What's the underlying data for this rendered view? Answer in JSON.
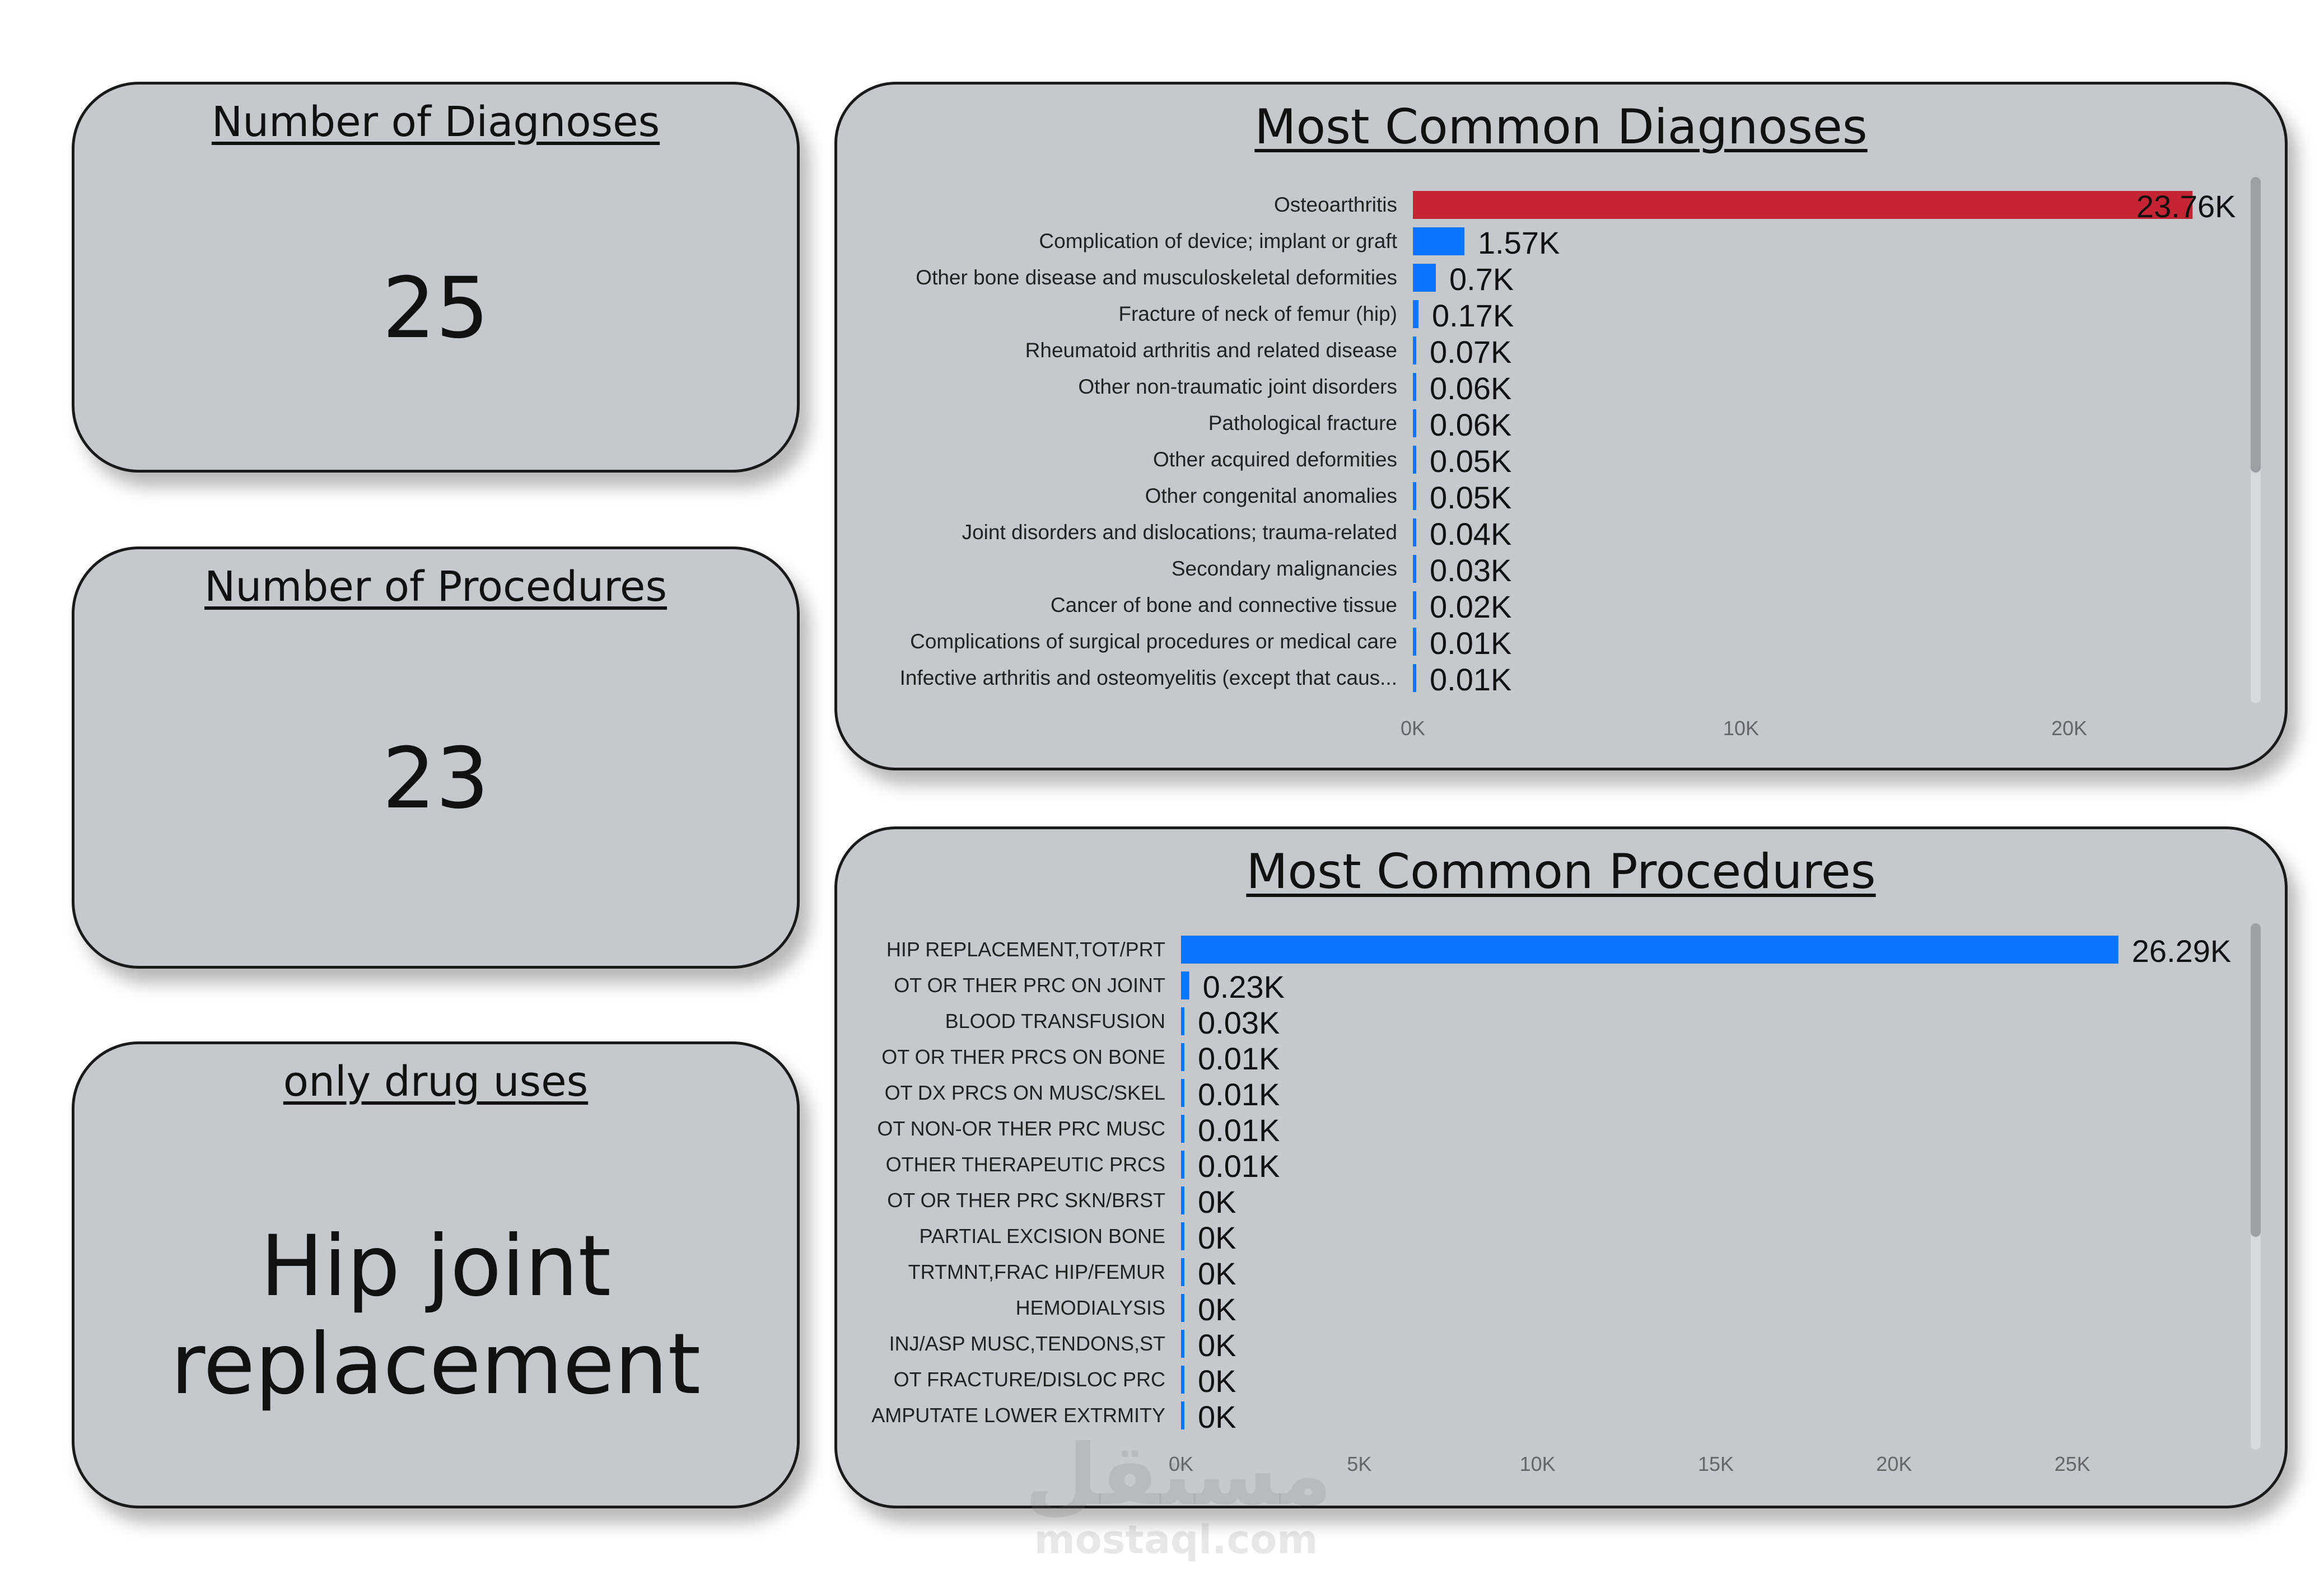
{
  "kpis": {
    "diagnoses": {
      "title": "Number of Diagnoses",
      "value": "25"
    },
    "procedures": {
      "title": "Number of Procedures",
      "value": "23"
    },
    "drug": {
      "title": "only drug uses",
      "value_line1": "Hip joint",
      "value_line2": "replacement"
    }
  },
  "watermark": {
    "arabic": "مستقل",
    "latin": "mostaql.com"
  },
  "colors": {
    "card_bg": "#c5c9ce",
    "bar_primary": "#0a76ff",
    "bar_highlight": "#c52533",
    "scrollbar": "#9aa0a6"
  },
  "chart_data": [
    {
      "type": "bar",
      "orientation": "horizontal",
      "title": "Most Common Diagnoses",
      "categories": [
        "Osteoarthritis",
        "Complication of device; implant or graft",
        "Other bone disease and musculoskeletal deformities",
        "Fracture of neck of femur (hip)",
        "Rheumatoid arthritis and related disease",
        "Other non-traumatic joint disorders",
        "Pathological fracture",
        "Other acquired deformities",
        "Other congenital anomalies",
        "Joint disorders and dislocations; trauma-related",
        "Secondary malignancies",
        "Cancer of bone and connective tissue",
        "Complications of surgical procedures or medical care",
        "Infective arthritis and osteomyelitis (except that caus..."
      ],
      "values": [
        23760,
        1570,
        700,
        170,
        70,
        60,
        60,
        50,
        50,
        40,
        30,
        20,
        10,
        10
      ],
      "data_labels": [
        "23.76K",
        "1.57K",
        "0.7K",
        "0.17K",
        "0.07K",
        "0.06K",
        "0.06K",
        "0.05K",
        "0.05K",
        "0.04K",
        "0.03K",
        "0.02K",
        "0.01K",
        "0.01K"
      ],
      "highlight_index": 0,
      "xlim": [
        0,
        25000
      ],
      "xticks": [
        0,
        10000,
        20000
      ],
      "xtick_labels": [
        "0K",
        "10K",
        "20K"
      ],
      "grid": false,
      "legend": "none"
    },
    {
      "type": "bar",
      "orientation": "horizontal",
      "title": "Most Common Procedures",
      "categories": [
        "HIP REPLACEMENT,TOT/PRT",
        "OT OR THER PRC ON JOINT",
        "BLOOD TRANSFUSION",
        "OT OR THER PRCS ON BONE",
        "OT DX PRCS ON MUSC/SKEL",
        "OT NON-OR THER PRC MUSC",
        "OTHER THERAPEUTIC PRCS",
        "OT OR THER PRC SKN/BRST",
        "PARTIAL EXCISION BONE",
        "TRTMNT,FRAC HIP/FEMUR",
        "HEMODIALYSIS",
        "INJ/ASP MUSC,TENDONS,ST",
        "OT FRACTURE/DISLOC PRC",
        "AMPUTATE LOWER EXTRMITY"
      ],
      "values": [
        26290,
        230,
        30,
        10,
        10,
        10,
        10,
        0,
        0,
        0,
        0,
        0,
        0,
        0
      ],
      "data_labels": [
        "26.29K",
        "0.23K",
        "0.03K",
        "0.01K",
        "0.01K",
        "0.01K",
        "0.01K",
        "0K",
        "0K",
        "0K",
        "0K",
        "0K",
        "0K",
        "0K"
      ],
      "xlim": [
        0,
        30000
      ],
      "xticks": [
        0,
        5000,
        10000,
        15000,
        20000,
        25000
      ],
      "xtick_labels": [
        "0K",
        "5K",
        "10K",
        "15K",
        "20K",
        "25K"
      ],
      "grid": false,
      "legend": "none"
    }
  ]
}
